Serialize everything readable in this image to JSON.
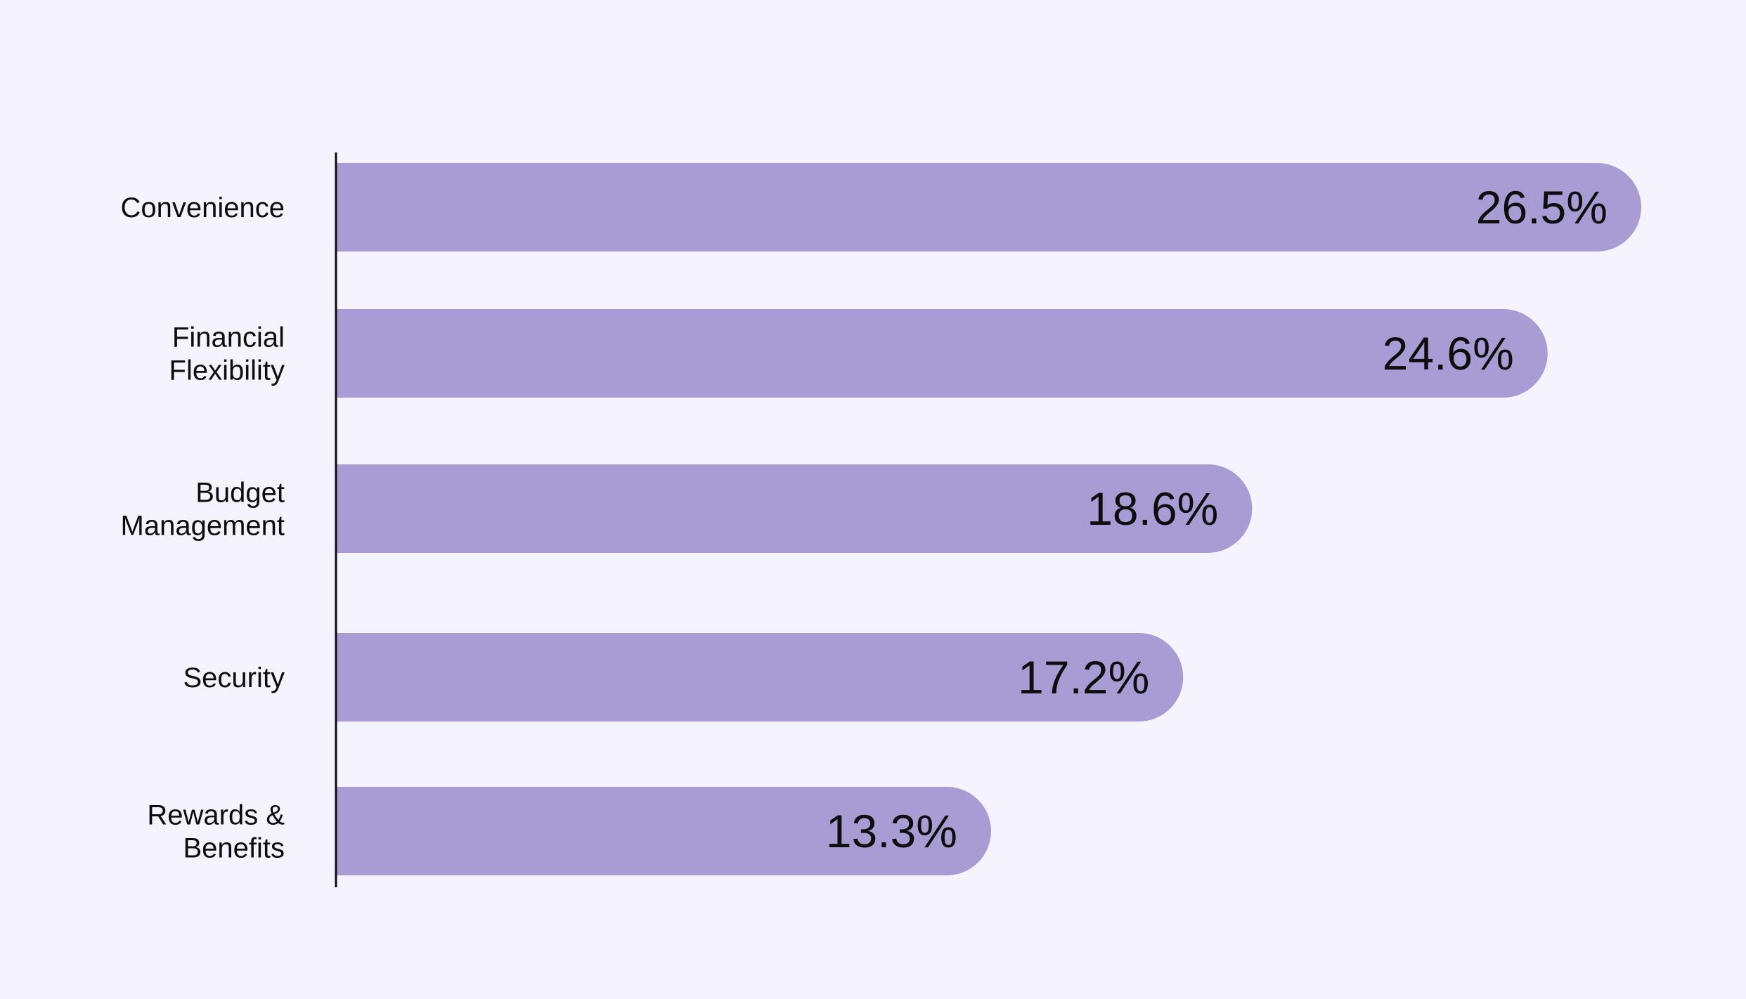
{
  "chart_data": {
    "type": "bar",
    "orientation": "horizontal",
    "categories": [
      "Convenience",
      "Financial Flexibility",
      "Budget Management",
      "Security",
      "Rewards & Benefits"
    ],
    "category_label_lines": [
      [
        "Convenience"
      ],
      [
        "Financial",
        "Flexibility"
      ],
      [
        "Budget",
        "Management"
      ],
      [
        "Security"
      ],
      [
        "Rewards &",
        "Benefits"
      ]
    ],
    "values": [
      26.5,
      24.6,
      18.6,
      17.2,
      13.3
    ],
    "value_labels": [
      "26.5%",
      "24.6%",
      "18.6%",
      "17.2%",
      "13.3%"
    ],
    "title": "",
    "xlabel": "",
    "ylabel": "",
    "xlim": [
      0,
      27.2
    ],
    "grid": false,
    "legend": "none",
    "colors": {
      "bar": "#a99bd4",
      "background": "#f5f4fe",
      "text": "#0d0d0d",
      "axis": "#0d0d0d"
    }
  }
}
